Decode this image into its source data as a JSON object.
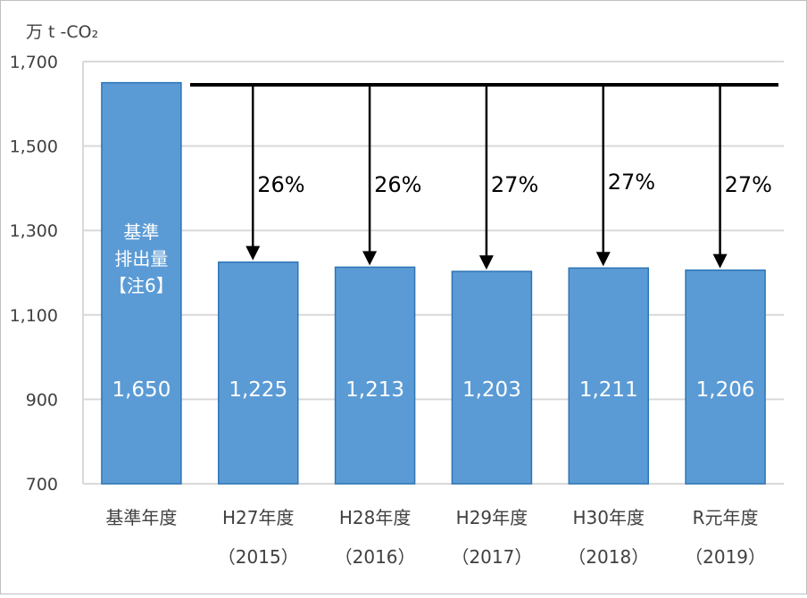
{
  "chart_data": {
    "type": "bar",
    "unit_label": "万 t -CO₂",
    "categories": [
      {
        "line1": "基準年度",
        "line2": ""
      },
      {
        "line1": "H27年度",
        "line2": "（2015）"
      },
      {
        "line1": "H28年度",
        "line2": "（2016）"
      },
      {
        "line1": "H29年度",
        "line2": "（2017）"
      },
      {
        "line1": "H30年度",
        "line2": "（2018）"
      },
      {
        "line1": "R元年度",
        "line2": "（2019）"
      }
    ],
    "values": [
      1650,
      1225,
      1213,
      1203,
      1211,
      1206
    ],
    "value_labels": [
      "1,650",
      "1,225",
      "1,213",
      "1,203",
      "1,211",
      "1,206"
    ],
    "base_bar_label": [
      "基準",
      "排出量",
      "【注6】"
    ],
    "reduction_labels": [
      null,
      "26%",
      "26%",
      "27%",
      "27%",
      "27%"
    ],
    "ylim": [
      700,
      1700
    ],
    "yticks": [
      700,
      900,
      1100,
      1300,
      1500,
      1700
    ],
    "ytick_labels": [
      "700",
      "900",
      "1,100",
      "1,300",
      "1,500",
      "1,700"
    ],
    "grid": true,
    "colors": {
      "bar": "#5b9bd5",
      "bar_border": "#2e75b6",
      "grid": "#d9d9d9",
      "arrow": "#000000",
      "value_text": "#ffffff"
    }
  }
}
